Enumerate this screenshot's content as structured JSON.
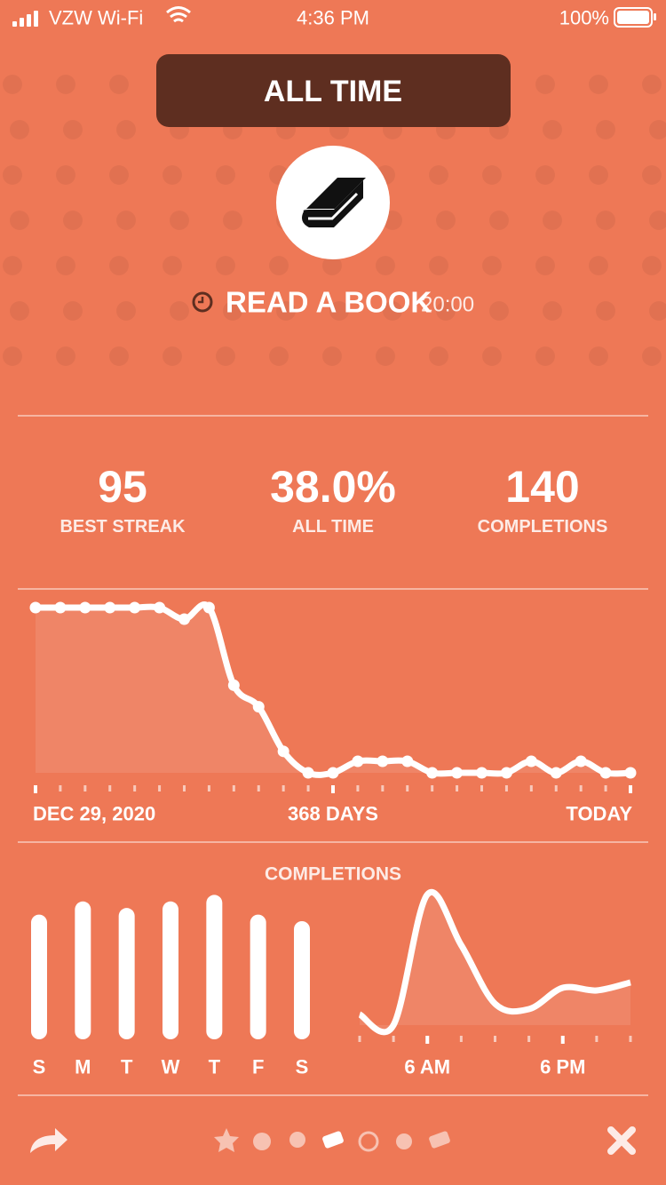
{
  "status": {
    "carrier": "VZW Wi-Fi",
    "time": "4:36 PM",
    "battery": "100%"
  },
  "period": "ALL TIME",
  "habit": {
    "name": "READ A BOOK",
    "duration": "20:00"
  },
  "stats": [
    {
      "value": "95",
      "label": "BEST STREAK"
    },
    {
      "value": "38.0%",
      "label": "ALL TIME"
    },
    {
      "value": "140",
      "label": "COMPLETIONS"
    }
  ],
  "completions_heading": "COMPLETIONS",
  "chart_data": [
    {
      "type": "line",
      "categories": [
        "DEC 29, 2020",
        null,
        null,
        null,
        null,
        null,
        null,
        null,
        null,
        null,
        null,
        null,
        "368 DAYS",
        null,
        null,
        null,
        null,
        null,
        null,
        null,
        null,
        null,
        null,
        null,
        "TODAY"
      ],
      "values": [
        100,
        100,
        100,
        100,
        100,
        100,
        93,
        100,
        53,
        40,
        13,
        0,
        0,
        7,
        7,
        7,
        0,
        0,
        0,
        0,
        7,
        0,
        7,
        0,
        0
      ],
      "ylim": [
        0,
        100
      ],
      "color": "#ffffff"
    },
    {
      "type": "bar",
      "categories": [
        "S",
        "M",
        "T",
        "W",
        "T",
        "F",
        "S"
      ],
      "values": [
        19,
        21,
        20,
        21,
        22,
        19,
        18
      ],
      "ylim": [
        0,
        23
      ],
      "color": "#ffffff"
    },
    {
      "type": "line",
      "categories": [
        null,
        null,
        "6 AM",
        null,
        null,
        null,
        "6 PM",
        null,
        null
      ],
      "values": [
        4,
        0,
        49,
        30,
        8,
        6,
        14,
        13,
        16
      ],
      "ylim": [
        0,
        50
      ],
      "color": "#ffffff"
    }
  ]
}
